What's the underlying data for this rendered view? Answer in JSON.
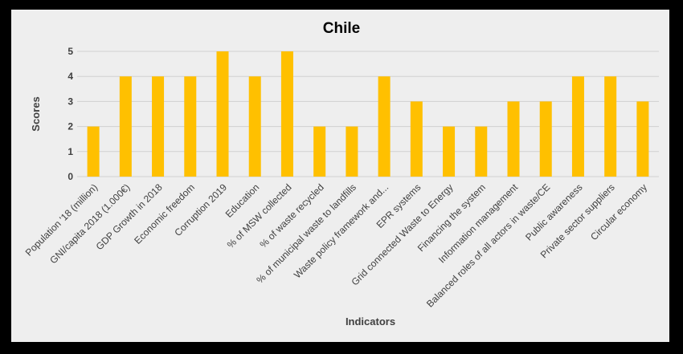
{
  "chart_data": {
    "type": "bar",
    "title": "Chile",
    "xlabel": "Indicators",
    "ylabel": "Scores",
    "ylim": [
      0,
      5
    ],
    "yticks": [
      0,
      1,
      2,
      3,
      4,
      5
    ],
    "grid": true,
    "bar_color": "#ffc000",
    "categories": [
      "Population '18 (million)",
      "GNI/capita 2018 (1.000€)",
      "GDP Growth in 2018",
      "Economic freedom",
      "Corruption 2019",
      "Education",
      "% of MSW collected",
      "% of waste recycled",
      "% of municipal waste to landfills",
      "Waste policy framework and...",
      "EPR systems",
      "Grid connected Waste to Energy",
      "Financing the system",
      "Information management",
      "Balanced roles of all actors in waste/CE",
      "Public awareness",
      "Private sector suppliers",
      "Circular economy"
    ],
    "values": [
      2,
      4,
      4,
      4,
      5,
      4,
      5,
      2,
      2,
      4,
      3,
      2,
      2,
      3,
      3,
      4,
      4,
      3
    ]
  }
}
